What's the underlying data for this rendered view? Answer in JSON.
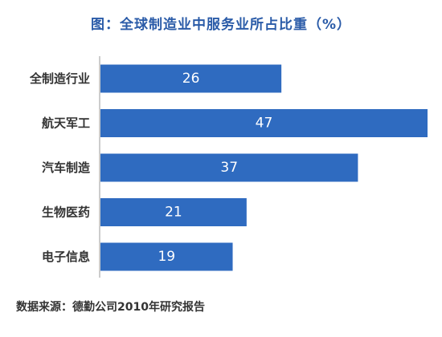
{
  "chart_data": {
    "type": "bar",
    "orientation": "horizontal",
    "title": "图：全球制造业中服务业所占比重（%）",
    "categories": [
      "全制造行业",
      "航天军工",
      "汽车制造",
      "生物医药",
      "电子信息"
    ],
    "values": [
      26,
      47,
      37,
      21,
      19
    ],
    "xlim": [
      0,
      47
    ],
    "grid": false,
    "bar_color": "#2F6BC0",
    "title_color": "#2A5BA8",
    "xlabel": "",
    "ylabel": ""
  },
  "source": "数据来源：德勤公司2010年研究报告"
}
